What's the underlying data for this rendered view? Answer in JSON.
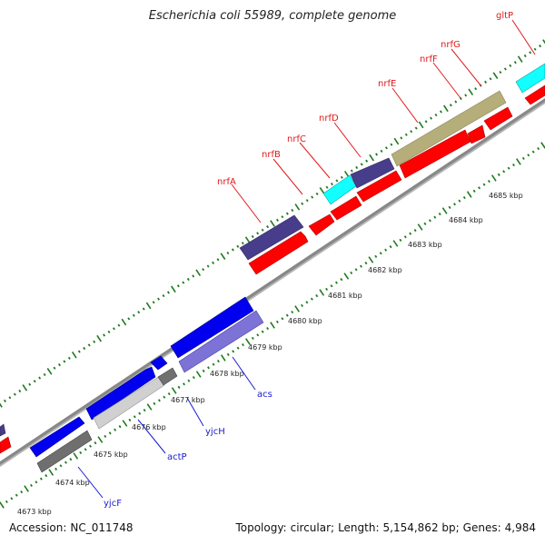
{
  "title": "Escherichia coli 55989, complete genome",
  "footer": {
    "accession_label": "Accession:",
    "accession": "NC_011748",
    "topology_label": "Topology:",
    "topology": "circular;",
    "length_label": "Length:",
    "length": "5,154,862 bp;",
    "genes_label": "Genes:",
    "genes": "4,984"
  },
  "colors": {
    "forward_label": "#e0191b",
    "reverse_label": "#1a1ad0",
    "backbone": "#8a8a8a",
    "tick": "#1e7a1e",
    "red": "#ff0000",
    "blue": "#0000ee",
    "navy": "#4a3f96",
    "cyan": "#11ffff",
    "olive": "#b5ae7a",
    "slate": "#7d72d6",
    "gray_dark": "#707070",
    "gray_light": "#cfcfcf"
  },
  "ruler_labels": [
    "4673 kbp",
    "4674 kbp",
    "4675 kbp",
    "4676 kbp",
    "4677 kbp",
    "4678 kbp",
    "4679 kbp",
    "4680 kbp",
    "4681 kbp",
    "4682 kbp",
    "4683 kbp",
    "4684 kbp",
    "4685 kbp"
  ],
  "upper_gene_labels": [
    "nrfA",
    "nrfB",
    "nrfC",
    "nrfD",
    "nrfE",
    "nrfF",
    "nrfG",
    "gltP"
  ],
  "lower_gene_labels": [
    "yjcF",
    "actP",
    "yjcH",
    "acs"
  ]
}
